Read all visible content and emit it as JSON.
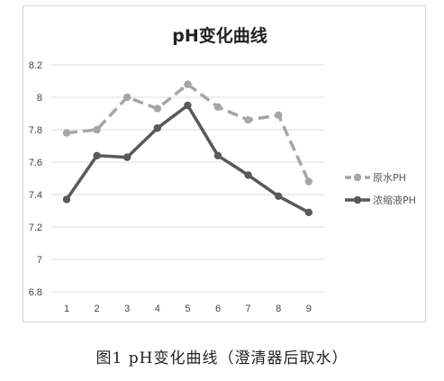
{
  "chart_data": {
    "type": "line",
    "title": "pH变化曲线",
    "categories": [
      "1",
      "2",
      "3",
      "4",
      "5",
      "6",
      "7",
      "8",
      "9"
    ],
    "ylim": [
      6.8,
      8.2
    ],
    "yticks": [
      "6.8",
      "7",
      "7.2",
      "7.4",
      "7.6",
      "7.8",
      "8",
      "8.2"
    ],
    "grid": true,
    "legend_position": "right",
    "series": [
      {
        "name": "原水PH",
        "values": [
          7.78,
          7.8,
          8.0,
          7.93,
          8.08,
          7.94,
          7.86,
          7.89,
          7.48
        ],
        "color": "#a6a6a6",
        "style": "dashed"
      },
      {
        "name": "浓缩液PH",
        "values": [
          7.37,
          7.64,
          7.63,
          7.81,
          7.95,
          7.64,
          7.52,
          7.39,
          7.29
        ],
        "color": "#595959",
        "style": "solid"
      }
    ]
  },
  "caption": "图1  pH变化曲线（澄清器后取水）"
}
